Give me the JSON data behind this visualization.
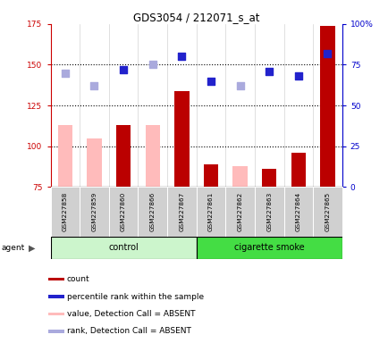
{
  "title": "GDS3054 / 212071_s_at",
  "samples": [
    "GSM227858",
    "GSM227859",
    "GSM227860",
    "GSM227866",
    "GSM227867",
    "GSM227861",
    "GSM227862",
    "GSM227863",
    "GSM227864",
    "GSM227865"
  ],
  "count_values": [
    null,
    null,
    113,
    null,
    134,
    89,
    null,
    86,
    96,
    174
  ],
  "count_absent_values": [
    113,
    105,
    null,
    113,
    null,
    null,
    88,
    null,
    null,
    null
  ],
  "rank_values": [
    null,
    null,
    147,
    null,
    155,
    140,
    null,
    146,
    143,
    157
  ],
  "rank_absent_values": [
    145,
    137,
    null,
    150,
    null,
    null,
    137,
    null,
    null,
    null
  ],
  "ylim_left": [
    75,
    175
  ],
  "ylim_right": [
    0,
    100
  ],
  "yticks_left": [
    75,
    100,
    125,
    150,
    175
  ],
  "yticks_right": [
    0,
    25,
    50,
    75,
    100
  ],
  "ytick_labels_left": [
    "75",
    "100",
    "125",
    "150",
    "175"
  ],
  "ytick_labels_right": [
    "0",
    "25",
    "50",
    "75",
    "100%"
  ],
  "hlines": [
    100,
    125,
    150
  ],
  "control_color_light": "#ccf5cc",
  "smoke_color": "#44dd44",
  "bar_red_dark": "#bb0000",
  "bar_red_light": "#ffbbbb",
  "dot_blue_dark": "#2222cc",
  "dot_blue_light": "#aaaadd",
  "left_axis_color": "#cc0000",
  "right_axis_color": "#0000cc",
  "bar_width": 0.5,
  "dot_size": 30
}
